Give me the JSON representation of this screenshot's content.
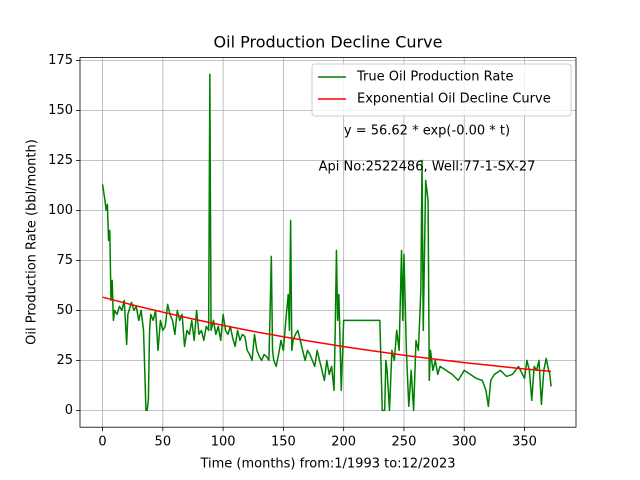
{
  "chart_data": {
    "type": "line",
    "title": "Oil Production Decline Curve",
    "x_label": "Time (months) from:1/1993 to:12/2023",
    "y_label": "Oil Production Rate (bbl/month)",
    "annotations": [
      "y = 56.62 * exp(-0.00 * t)",
      "Api No:2522486, Well:77-1-SX-27"
    ],
    "xlim": [
      -18.7,
      392.7
    ],
    "ylim": [
      -8.4,
      176.4
    ],
    "xticks": [
      0,
      50,
      100,
      150,
      200,
      250,
      300,
      350
    ],
    "yticks": [
      0,
      25,
      50,
      75,
      100,
      125,
      150,
      175
    ],
    "grid": true,
    "legend": "upper right",
    "series": [
      {
        "name": "True Oil Production Rate",
        "color": "#008000",
        "x": [
          0,
          2,
          3,
          4,
          5,
          6,
          7,
          8,
          9,
          10,
          12,
          14,
          16,
          18,
          20,
          21,
          22,
          24,
          26,
          28,
          30,
          32,
          34,
          36,
          37,
          38,
          39,
          40,
          42,
          44,
          46,
          48,
          50,
          52,
          54,
          56,
          58,
          60,
          62,
          64,
          66,
          68,
          70,
          72,
          74,
          76,
          78,
          80,
          82,
          84,
          86,
          88,
          89,
          90,
          92,
          94,
          96,
          98,
          100,
          102,
          104,
          106,
          108,
          110,
          112,
          114,
          116,
          118,
          120,
          122,
          124,
          126,
          128,
          130,
          132,
          134,
          136,
          138,
          139,
          140,
          141,
          142,
          144,
          146,
          148,
          150,
          152,
          154,
          155,
          156,
          157,
          158,
          160,
          162,
          164,
          166,
          168,
          170,
          172,
          174,
          176,
          178,
          180,
          182,
          184,
          186,
          188,
          190,
          192,
          193,
          194,
          195,
          196,
          198,
          200,
          202,
          210,
          220,
          230,
          232,
          234,
          235,
          236,
          238,
          240,
          242,
          244,
          246,
          248,
          249,
          250,
          252,
          254,
          256,
          258,
          260,
          262,
          264,
          265,
          266,
          268,
          270,
          271,
          272,
          274,
          276,
          278,
          280,
          285,
          290,
          295,
          300,
          305,
          310,
          315,
          318,
          320,
          322,
          325,
          330,
          335,
          340,
          345,
          350,
          352,
          354,
          356,
          358,
          360,
          362,
          364,
          366,
          368,
          370,
          371,
          372
        ],
        "values": [
          113,
          105,
          100,
          103,
          85,
          90,
          55,
          65,
          45,
          50,
          48,
          52,
          50,
          55,
          33,
          48,
          50,
          54,
          50,
          52,
          45,
          50,
          40,
          0,
          0,
          5,
          40,
          48,
          45,
          50,
          30,
          45,
          40,
          42,
          53,
          48,
          45,
          38,
          50,
          45,
          48,
          32,
          40,
          38,
          45,
          35,
          50,
          38,
          40,
          35,
          42,
          40,
          168,
          40,
          45,
          38,
          42,
          35,
          48,
          40,
          38,
          42,
          36,
          32,
          40,
          35,
          38,
          37,
          30,
          28,
          25,
          38,
          30,
          27,
          25,
          28,
          27,
          25,
          50,
          77,
          30,
          25,
          22,
          28,
          35,
          30,
          45,
          58,
          40,
          95,
          30,
          35,
          38,
          40,
          35,
          30,
          25,
          30,
          28,
          25,
          22,
          30,
          25,
          20,
          15,
          25,
          18,
          22,
          10,
          40,
          80,
          45,
          58,
          10,
          45,
          45,
          45,
          45,
          45,
          0,
          0,
          25,
          20,
          0,
          30,
          25,
          40,
          30,
          80,
          45,
          78,
          30,
          2,
          20,
          0,
          35,
          30,
          60,
          125,
          40,
          115,
          105,
          15,
          30,
          20,
          25,
          18,
          22,
          20,
          18,
          15,
          20,
          18,
          16,
          15,
          10,
          2,
          15,
          18,
          20,
          17,
          18,
          22,
          16,
          25,
          20,
          5,
          22,
          20,
          25,
          3,
          20,
          26,
          20,
          18,
          12
        ]
      },
      {
        "name": "Exponential Oil Decline Curve",
        "color": "#ff0000",
        "x": [
          0,
          25,
          50,
          75,
          100,
          125,
          150,
          175,
          200,
          225,
          250,
          275,
          300,
          325,
          350,
          372
        ],
        "values": [
          56.6,
          52.7,
          49.1,
          45.7,
          42.5,
          39.5,
          36.8,
          34.3,
          31.9,
          29.7,
          27.6,
          25.7,
          23.9,
          22.3,
          20.7,
          19.5
        ]
      }
    ]
  }
}
